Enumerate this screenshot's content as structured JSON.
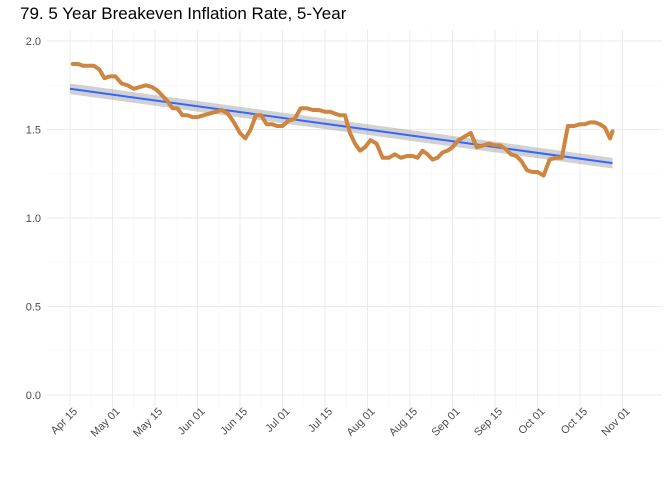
{
  "chart_data": {
    "type": "line",
    "title": "79. 5 Year Breakeven Inflation Rate, 5-Year",
    "xlabel": "",
    "ylabel": "",
    "ylim": [
      0,
      2.0
    ],
    "grid": true,
    "x_ticks": [
      "Apr 15",
      "May 01",
      "May 15",
      "Jun 01",
      "Jun 15",
      "Jul 01",
      "Jul 15",
      "Aug 01",
      "Aug 15",
      "Sep 01",
      "Sep 15",
      "Oct 01",
      "Oct 15",
      "Nov 01"
    ],
    "y_ticks": [
      "0.0",
      "0.5",
      "1.0",
      "1.5",
      "2.0"
    ],
    "series": [
      {
        "kind": "line",
        "color": "#cd853f",
        "x": [
          "2015-04-16",
          "2015-04-18",
          "2015-04-20",
          "2015-04-22",
          "2015-04-24",
          "2015-04-26",
          "2015-04-28",
          "2015-04-30",
          "2015-05-02",
          "2015-05-04",
          "2015-05-06",
          "2015-05-08",
          "2015-05-10",
          "2015-05-12",
          "2015-05-14",
          "2015-05-16",
          "2015-05-18",
          "2015-05-20",
          "2015-05-22",
          "2015-05-24",
          "2015-05-26",
          "2015-05-28",
          "2015-05-30",
          "2015-06-01",
          "2015-06-03",
          "2015-06-05",
          "2015-06-07",
          "2015-06-09",
          "2015-06-11",
          "2015-06-13",
          "2015-06-15",
          "2015-06-17",
          "2015-06-19",
          "2015-06-21",
          "2015-06-23",
          "2015-06-25",
          "2015-06-27",
          "2015-06-29",
          "2015-07-01",
          "2015-07-03",
          "2015-07-05",
          "2015-07-07",
          "2015-07-09",
          "2015-07-11",
          "2015-07-13",
          "2015-07-15",
          "2015-07-17",
          "2015-07-19",
          "2015-07-21",
          "2015-07-23",
          "2015-07-25",
          "2015-07-27",
          "2015-07-29",
          "2015-07-31",
          "2015-08-02",
          "2015-08-04",
          "2015-08-06",
          "2015-08-08",
          "2015-08-10",
          "2015-08-12",
          "2015-08-14",
          "2015-08-16",
          "2015-08-18",
          "2015-08-20",
          "2015-08-22",
          "2015-08-24",
          "2015-08-26",
          "2015-08-28",
          "2015-08-30",
          "2015-09-01",
          "2015-09-03",
          "2015-09-05",
          "2015-09-07",
          "2015-09-09",
          "2015-09-11",
          "2015-09-13",
          "2015-09-15",
          "2015-09-17",
          "2015-09-19",
          "2015-09-21",
          "2015-09-23",
          "2015-09-25",
          "2015-09-27",
          "2015-09-29",
          "2015-10-01",
          "2015-10-03",
          "2015-10-05",
          "2015-10-07",
          "2015-10-09",
          "2015-10-11",
          "2015-10-13",
          "2015-10-15",
          "2015-10-17",
          "2015-10-19",
          "2015-10-21",
          "2015-10-23",
          "2015-10-25",
          "2015-10-27",
          "2015-10-28"
        ],
        "y": [
          1.87,
          1.87,
          1.86,
          1.86,
          1.86,
          1.84,
          1.79,
          1.8,
          1.8,
          1.76,
          1.75,
          1.73,
          1.74,
          1.75,
          1.74,
          1.72,
          1.69,
          1.66,
          1.62,
          1.62,
          1.58,
          1.58,
          1.57,
          1.57,
          1.58,
          1.59,
          1.6,
          1.61,
          1.59,
          1.54,
          1.48,
          1.45,
          1.5,
          1.58,
          1.58,
          1.53,
          1.53,
          1.52,
          1.52,
          1.55,
          1.56,
          1.62,
          1.62,
          1.61,
          1.61,
          1.6,
          1.6,
          1.59,
          1.58,
          1.58,
          1.48,
          1.42,
          1.38,
          1.4,
          1.44,
          1.42,
          1.34,
          1.34,
          1.36,
          1.34,
          1.35,
          1.35,
          1.34,
          1.38,
          1.36,
          1.33,
          1.34,
          1.37,
          1.38,
          1.4,
          1.44,
          1.46,
          1.48,
          1.4,
          1.41,
          1.42,
          1.41,
          1.41,
          1.39,
          1.36,
          1.35,
          1.32,
          1.27,
          1.26,
          1.26,
          1.24,
          1.33,
          1.34,
          1.34,
          1.52,
          1.52,
          1.53,
          1.53,
          1.54,
          1.54,
          1.53,
          1.51,
          1.45,
          1.49
        ]
      },
      {
        "kind": "regression",
        "color": "#3366ff",
        "band_color": "#999999",
        "x": [
          "2015-04-15",
          "2015-10-28"
        ],
        "y": [
          1.73,
          1.31
        ],
        "band_halfwidth": [
          0.03,
          0.03
        ]
      }
    ]
  }
}
